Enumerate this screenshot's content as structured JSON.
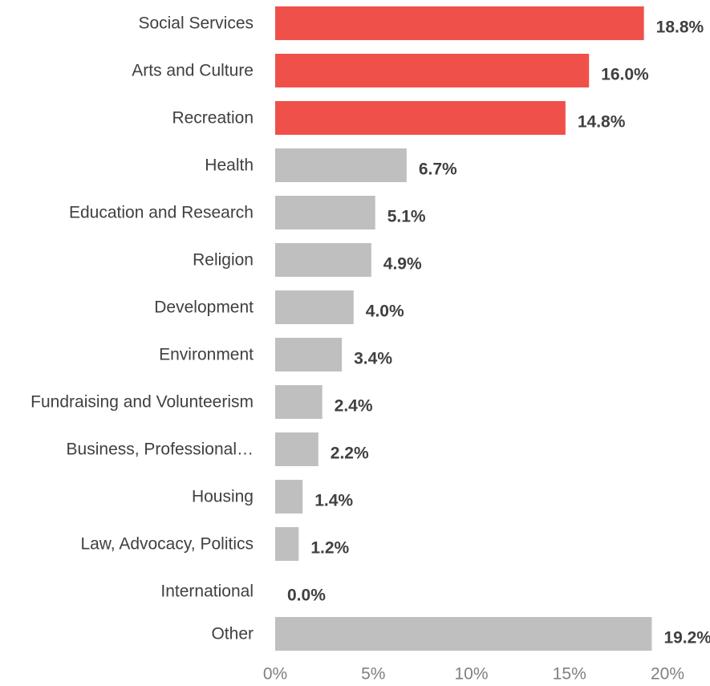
{
  "colors": {
    "highlight": "#f0504a",
    "default": "#bfbfbf",
    "text": "#404040",
    "axis_text": "#808080"
  },
  "chart_data": {
    "type": "bar",
    "orientation": "horizontal",
    "categories": [
      "Social Services",
      "Arts and Culture",
      "Recreation",
      "Health",
      "Education and Research",
      "Religion",
      "Development",
      "Environment",
      "Fundraising and Volunteerism",
      "Business, Professional…",
      "Housing",
      "Law, Advocacy, Politics",
      "International",
      "Other"
    ],
    "values": [
      18.8,
      16.0,
      14.8,
      6.7,
      5.1,
      4.9,
      4.0,
      3.4,
      2.4,
      2.2,
      1.4,
      1.2,
      0.0,
      19.2
    ],
    "value_labels": [
      "18.8%",
      "16.0%",
      "14.8%",
      "6.7%",
      "5.1%",
      "4.9%",
      "4.0%",
      "3.4%",
      "2.4%",
      "2.2%",
      "1.4%",
      "1.2%",
      "0.0%",
      "19.2%"
    ],
    "highlighted": [
      true,
      true,
      true,
      false,
      false,
      false,
      false,
      false,
      false,
      false,
      false,
      false,
      false,
      false
    ],
    "x_ticks": [
      "0%",
      "5%",
      "10%",
      "15%",
      "20%"
    ],
    "x_tick_values": [
      0,
      5,
      10,
      15,
      20
    ],
    "xlim": [
      0,
      20
    ],
    "grid": false,
    "legend": "none"
  }
}
